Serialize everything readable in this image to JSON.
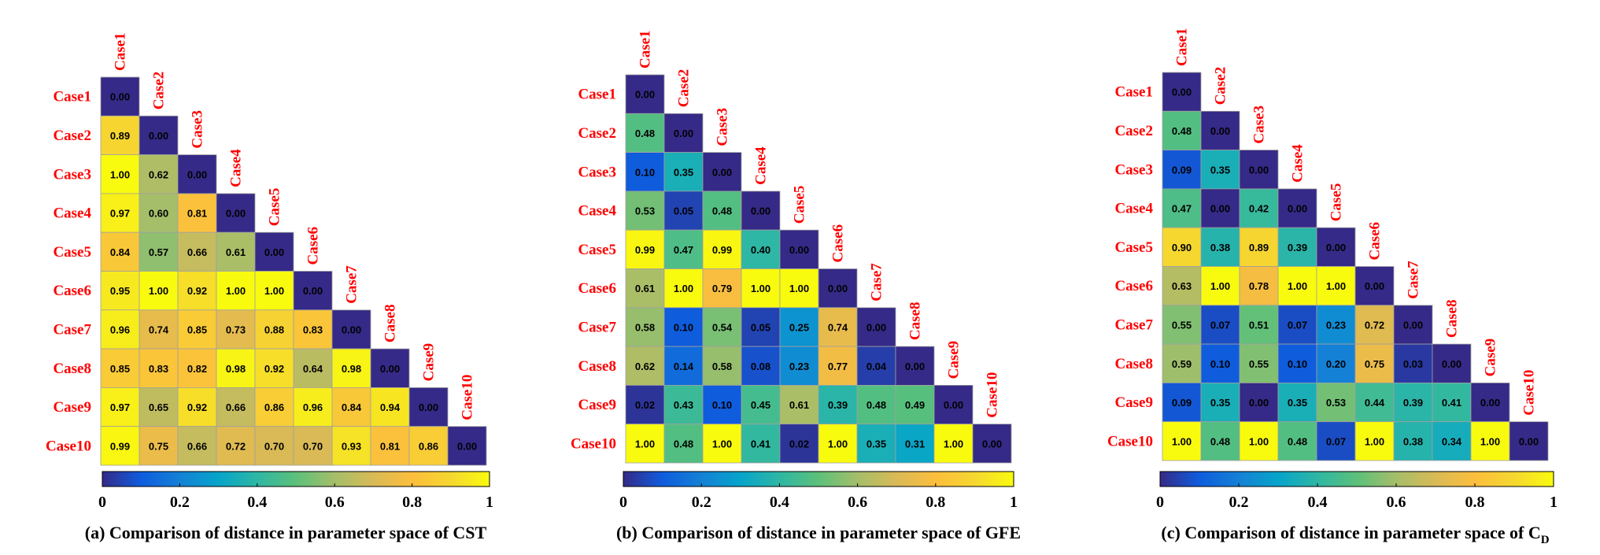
{
  "chart_data": [
    {
      "type": "heatmap",
      "caption": "(a) Comparison of distance in parameter space of CST",
      "labels": [
        "Case1",
        "Case2",
        "Case3",
        "Case4",
        "Case5",
        "Case6",
        "Case7",
        "Case8",
        "Case9",
        "Case10"
      ],
      "rows": [
        [
          "0.00"
        ],
        [
          "0.89",
          "0.00"
        ],
        [
          "1.00",
          "0.62",
          "0.00"
        ],
        [
          "0.97",
          "0.60",
          "0.81",
          "0.00"
        ],
        [
          "0.84",
          "0.57",
          "0.66",
          "0.61",
          "0.00"
        ],
        [
          "0.95",
          "1.00",
          "0.92",
          "1.00",
          "1.00",
          "0.00"
        ],
        [
          "0.96",
          "0.74",
          "0.85",
          "0.73",
          "0.88",
          "0.83",
          "0.00"
        ],
        [
          "0.85",
          "0.83",
          "0.82",
          "0.98",
          "0.92",
          "0.64",
          "0.98",
          "0.00"
        ],
        [
          "0.97",
          "0.65",
          "0.92",
          "0.66",
          "0.86",
          "0.96",
          "0.84",
          "0.94",
          "0.00"
        ],
        [
          "0.99",
          "0.75",
          "0.66",
          "0.72",
          "0.70",
          "0.70",
          "0.93",
          "0.81",
          "0.86",
          "0.00"
        ]
      ],
      "colorbar": {
        "range": [
          0,
          1
        ],
        "ticks": [
          "0",
          "0.2",
          "0.4",
          "0.6",
          "0.8",
          "1"
        ]
      }
    },
    {
      "type": "heatmap",
      "caption": "(b) Comparison of distance in parameter space of GFE",
      "labels": [
        "Case1",
        "Case2",
        "Case3",
        "Case4",
        "Case5",
        "Case6",
        "Case7",
        "Case8",
        "Case9",
        "Case10"
      ],
      "rows": [
        [
          "0.00"
        ],
        [
          "0.48",
          "0.00"
        ],
        [
          "0.10",
          "0.35",
          "0.00"
        ],
        [
          "0.53",
          "0.05",
          "0.48",
          "0.00"
        ],
        [
          "0.99",
          "0.47",
          "0.99",
          "0.40",
          "0.00"
        ],
        [
          "0.61",
          "1.00",
          "0.79",
          "1.00",
          "1.00",
          "0.00"
        ],
        [
          "0.58",
          "0.10",
          "0.54",
          "0.05",
          "0.25",
          "0.74",
          "0.00"
        ],
        [
          "0.62",
          "0.14",
          "0.58",
          "0.08",
          "0.23",
          "0.77",
          "0.04",
          "0.00"
        ],
        [
          "0.02",
          "0.43",
          "0.10",
          "0.45",
          "0.61",
          "0.39",
          "0.48",
          "0.49",
          "0.00"
        ],
        [
          "1.00",
          "0.48",
          "1.00",
          "0.41",
          "0.02",
          "1.00",
          "0.35",
          "0.31",
          "1.00",
          "0.00"
        ]
      ],
      "colorbar": {
        "range": [
          0,
          1
        ],
        "ticks": [
          "0",
          "0.2",
          "0.4",
          "0.6",
          "0.8",
          "1"
        ]
      }
    },
    {
      "type": "heatmap",
      "caption": "(c) Comparison of distance in parameter space of C",
      "caption_subscript": "D",
      "labels": [
        "Case1",
        "Case2",
        "Case3",
        "Case4",
        "Case5",
        "Case6",
        "Case7",
        "Case8",
        "Case9",
        "Case10"
      ],
      "rows": [
        [
          "0.00"
        ],
        [
          "0.48",
          "0.00"
        ],
        [
          "0.09",
          "0.35",
          "0.00"
        ],
        [
          "0.47",
          "0.00",
          "0.42",
          "0.00"
        ],
        [
          "0.90",
          "0.38",
          "0.89",
          "0.39",
          "0.00"
        ],
        [
          "0.63",
          "1.00",
          "0.78",
          "1.00",
          "1.00",
          "0.00"
        ],
        [
          "0.55",
          "0.07",
          "0.51",
          "0.07",
          "0.23",
          "0.72",
          "0.00"
        ],
        [
          "0.59",
          "0.10",
          "0.55",
          "0.10",
          "0.20",
          "0.75",
          "0.03",
          "0.00"
        ],
        [
          "0.09",
          "0.35",
          "0.00",
          "0.35",
          "0.53",
          "0.44",
          "0.39",
          "0.41",
          "0.00"
        ],
        [
          "1.00",
          "0.48",
          "1.00",
          "0.48",
          "0.07",
          "1.00",
          "0.38",
          "0.34",
          "1.00",
          "0.00"
        ]
      ],
      "colorbar": {
        "range": [
          0,
          1
        ],
        "ticks": [
          "0",
          "0.2",
          "0.4",
          "0.6",
          "0.8",
          "1"
        ]
      }
    }
  ]
}
